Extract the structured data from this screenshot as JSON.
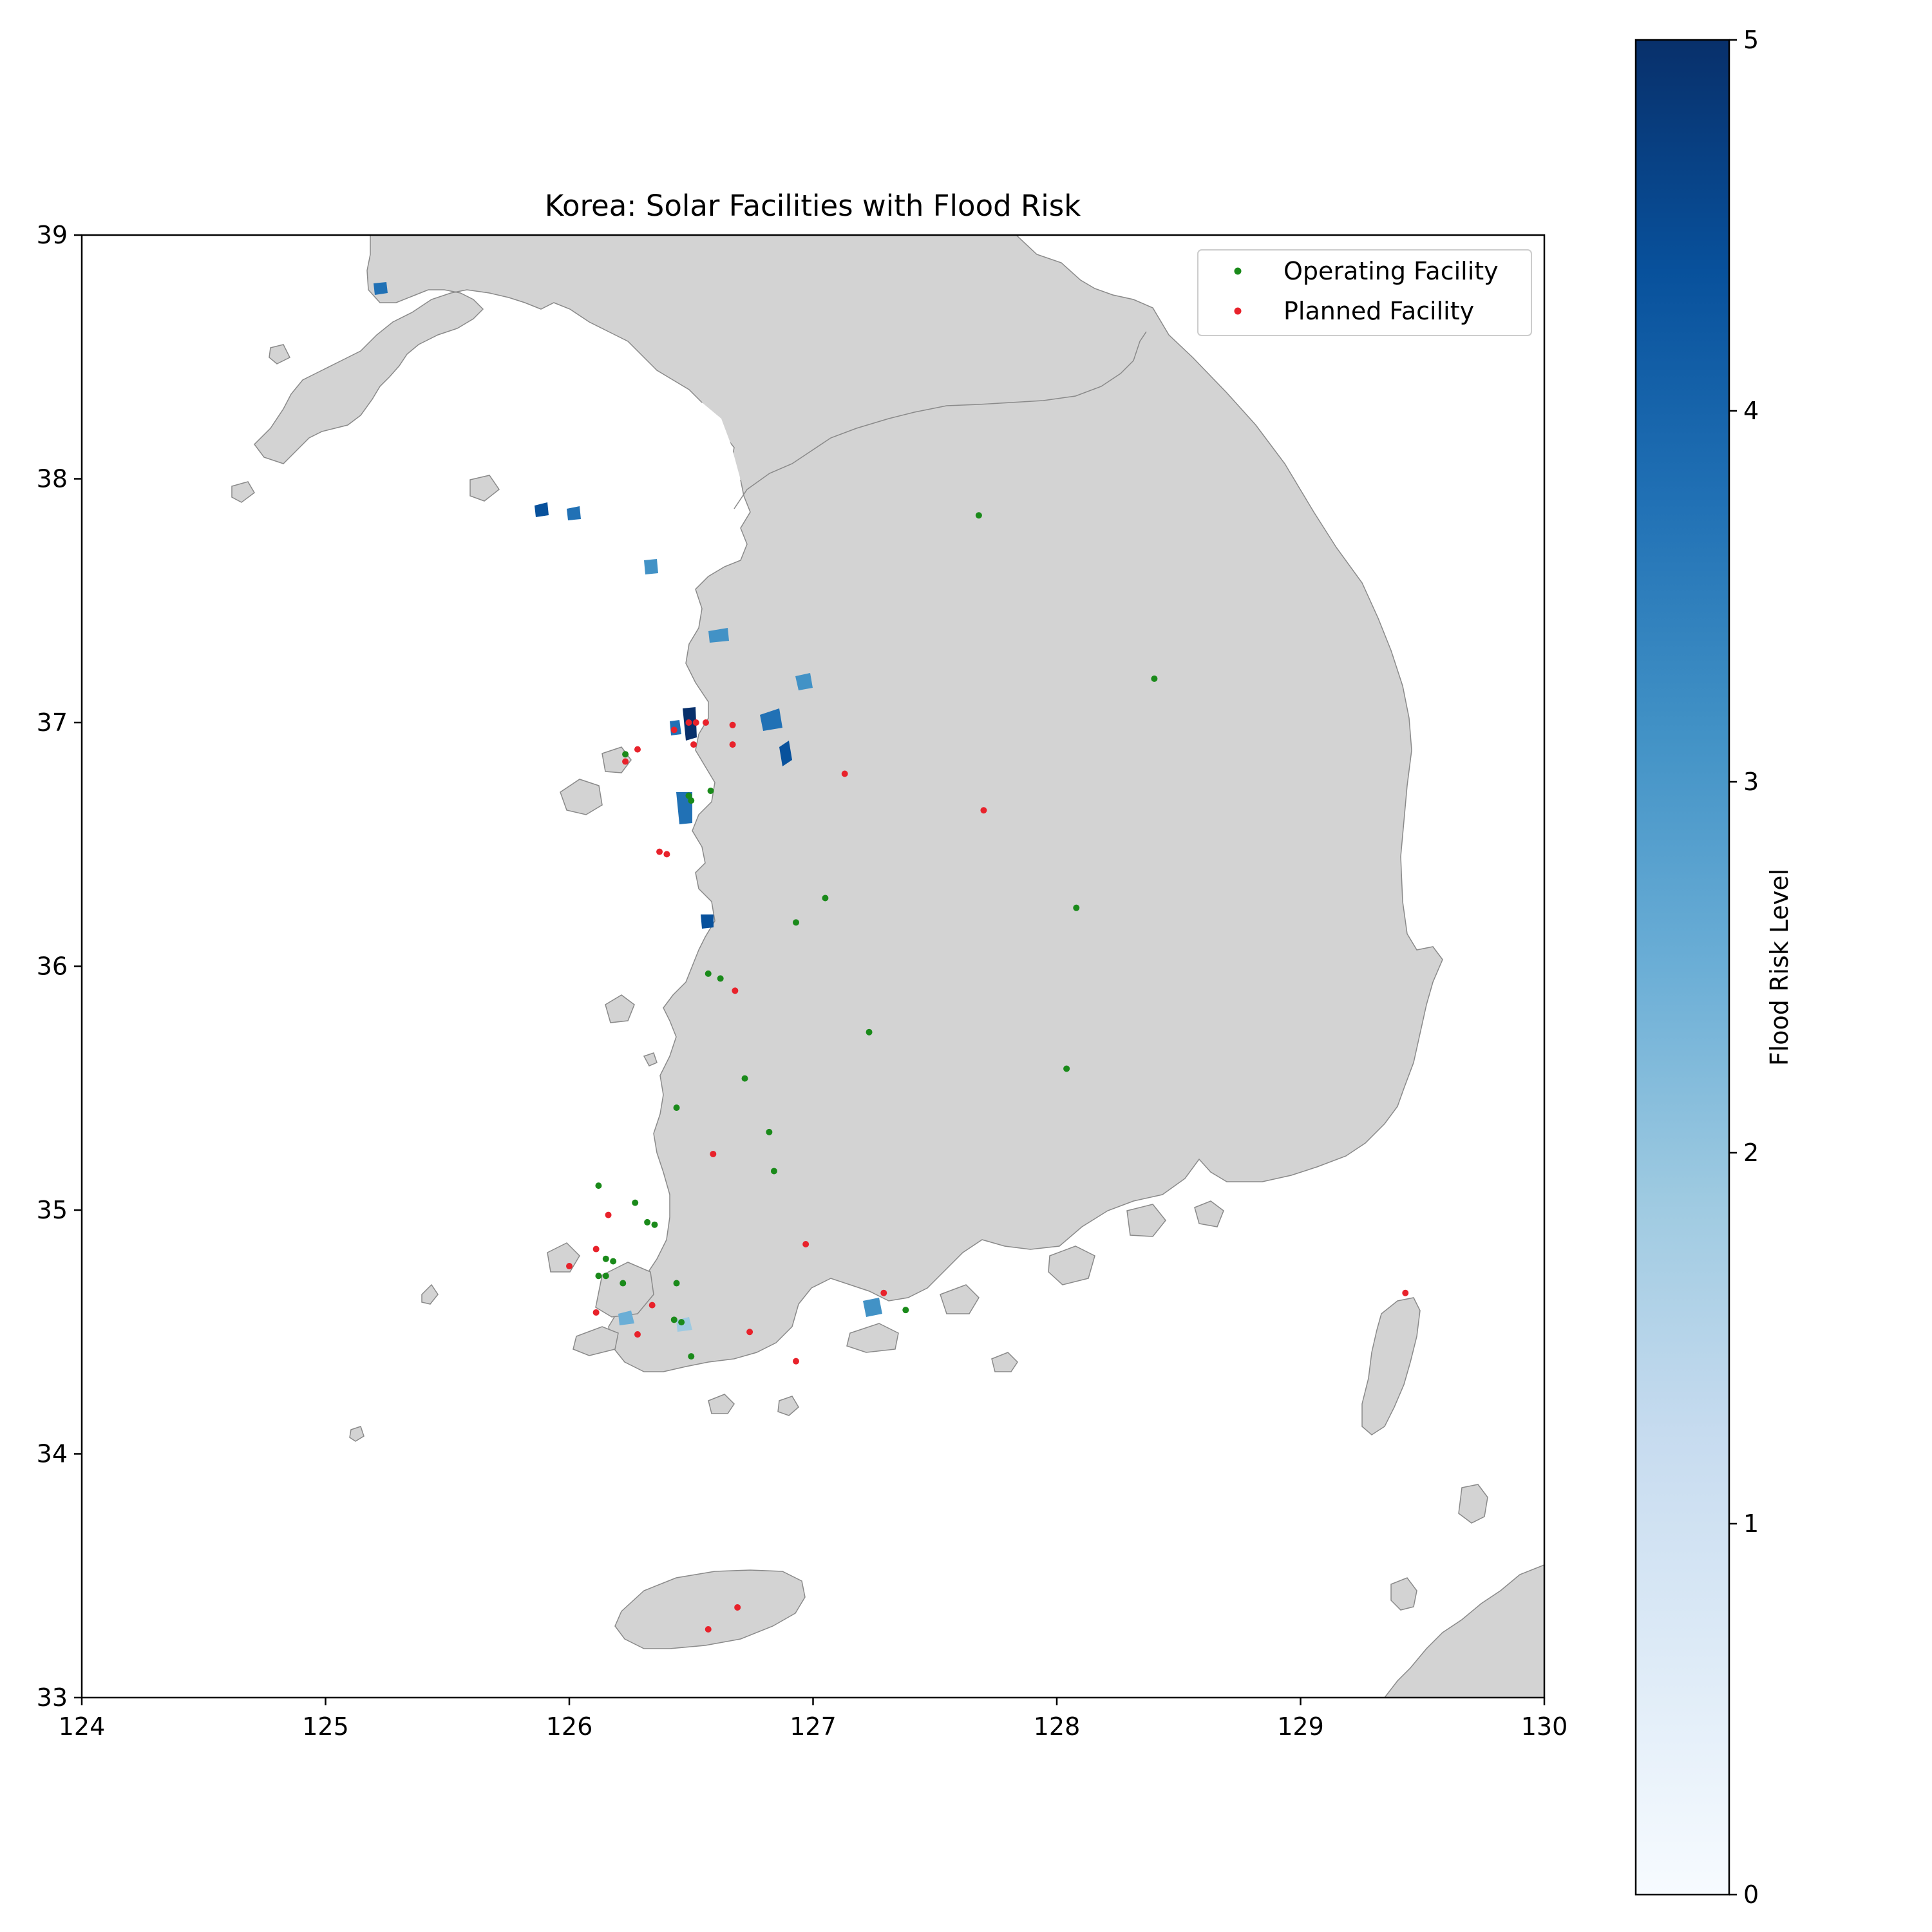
{
  "title": "Korea: Solar Facilities with Flood Risk",
  "legend": {
    "operating_label": "Operating Facility",
    "planned_label": "Planned Facility"
  },
  "colorbar": {
    "label": "Flood Risk Level",
    "ticks": [
      "0",
      "1",
      "2",
      "3",
      "4",
      "5"
    ],
    "min": 0,
    "max": 5,
    "colormap": "Blues",
    "low_color": "#f7fbff",
    "high_color": "#08306b"
  },
  "colors": {
    "land": "#d3d3d3",
    "land_edge": "#8a8a8a",
    "operating": "#1a8a1a",
    "planned": "#e8222b"
  },
  "chart_data": {
    "type": "scatter",
    "title": "Korea: Solar Facilities with Flood Risk",
    "xlabel": "",
    "ylabel": "",
    "xlim": [
      124,
      130
    ],
    "ylim": [
      33,
      39
    ],
    "xticks": [
      "124",
      "125",
      "126",
      "127",
      "128",
      "129",
      "130"
    ],
    "yticks": [
      "33",
      "34",
      "35",
      "36",
      "37",
      "38",
      "39"
    ],
    "legend_position": "top-right",
    "series": [
      {
        "name": "Operating Facility",
        "color": "#1a8a1a",
        "points": [
          [
            127.68,
            37.85
          ],
          [
            128.4,
            37.18
          ],
          [
            127.05,
            36.28
          ],
          [
            126.93,
            36.18
          ],
          [
            128.08,
            36.24
          ],
          [
            126.57,
            35.97
          ],
          [
            126.62,
            35.95
          ],
          [
            127.23,
            35.73
          ],
          [
            126.72,
            35.54
          ],
          [
            128.04,
            35.58
          ],
          [
            126.44,
            35.42
          ],
          [
            126.82,
            35.32
          ],
          [
            126.84,
            35.16
          ],
          [
            126.12,
            35.1
          ],
          [
            126.27,
            35.03
          ],
          [
            126.32,
            34.95
          ],
          [
            126.35,
            34.94
          ],
          [
            126.15,
            34.8
          ],
          [
            126.18,
            34.79
          ],
          [
            126.15,
            34.73
          ],
          [
            126.12,
            34.73
          ],
          [
            126.22,
            34.7
          ],
          [
            126.44,
            34.7
          ],
          [
            126.43,
            34.55
          ],
          [
            126.46,
            34.54
          ],
          [
            126.5,
            34.4
          ],
          [
            127.38,
            34.59
          ],
          [
            126.49,
            36.7
          ],
          [
            126.5,
            36.68
          ],
          [
            126.23,
            36.87
          ],
          [
            126.58,
            36.72
          ]
        ]
      },
      {
        "name": "Planned Facility",
        "color": "#e8222b",
        "points": [
          [
            127.13,
            36.79
          ],
          [
            127.7,
            36.64
          ],
          [
            126.4,
            36.46
          ],
          [
            126.37,
            36.47
          ],
          [
            126.43,
            36.97
          ],
          [
            126.49,
            37.0
          ],
          [
            126.52,
            37.0
          ],
          [
            126.56,
            37.0
          ],
          [
            126.67,
            36.99
          ],
          [
            126.51,
            36.91
          ],
          [
            126.67,
            36.91
          ],
          [
            126.23,
            36.84
          ],
          [
            126.28,
            36.89
          ],
          [
            126.68,
            35.9
          ],
          [
            126.59,
            35.23
          ],
          [
            126.16,
            34.98
          ],
          [
            126.11,
            34.84
          ],
          [
            126.0,
            34.77
          ],
          [
            126.97,
            34.86
          ],
          [
            126.34,
            34.61
          ],
          [
            126.11,
            34.58
          ],
          [
            126.28,
            34.49
          ],
          [
            126.74,
            34.5
          ],
          [
            126.93,
            34.38
          ],
          [
            127.29,
            34.66
          ],
          [
            129.43,
            34.66
          ],
          [
            126.69,
            33.37
          ],
          [
            126.57,
            33.28
          ]
        ]
      }
    ]
  }
}
